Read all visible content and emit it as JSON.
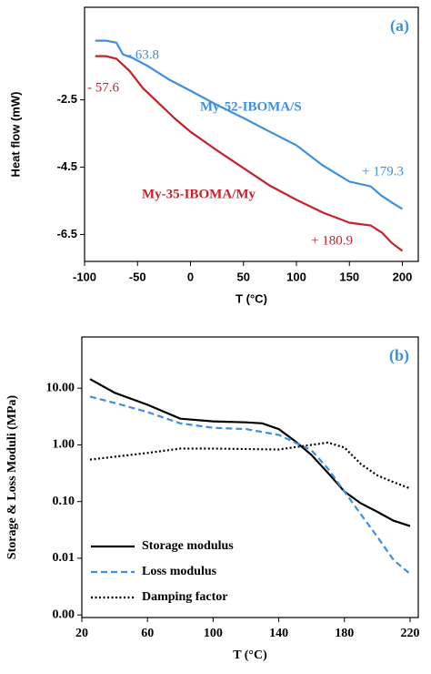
{
  "chart_data": [
    {
      "type": "line",
      "panel_label": "(a)",
      "ylabel": "Heat flow (mW)",
      "xlabel": "T (°C)",
      "xlim": [
        -100,
        215
      ],
      "xticks": [
        -100,
        -50,
        0,
        50,
        100,
        150,
        200
      ],
      "ylim": [
        -7.3,
        0.25
      ],
      "yticks": [
        -6.5,
        -4.5,
        -2.5
      ],
      "log_y": false,
      "legend": null,
      "series": [
        {
          "name": "My-52-IBOMA/S",
          "color": "#3d8fe0",
          "dash": "solid",
          "x": [
            -90,
            -80,
            -70,
            -63.8,
            -55,
            -40,
            -20,
            0,
            25,
            50,
            75,
            100,
            125,
            150,
            170,
            180,
            190,
            200
          ],
          "values": [
            -0.74,
            -0.74,
            -0.8,
            -1.15,
            -1.25,
            -1.5,
            -1.9,
            -2.23,
            -2.65,
            -3.04,
            -3.45,
            -3.85,
            -4.45,
            -4.93,
            -5.07,
            -5.34,
            -5.55,
            -5.74
          ]
        },
        {
          "name": "My-35-IBOMA/My",
          "color": "#c8202a",
          "dash": "solid",
          "x": [
            -90,
            -80,
            -70,
            -57.6,
            -45,
            -30,
            -15,
            0,
            25,
            50,
            75,
            100,
            125,
            150,
            170,
            180.9,
            190,
            200
          ],
          "values": [
            -1.2,
            -1.2,
            -1.28,
            -1.64,
            -2.15,
            -2.6,
            -3.05,
            -3.45,
            -4.0,
            -4.53,
            -5.05,
            -5.47,
            -5.85,
            -6.15,
            -6.23,
            -6.45,
            -6.75,
            -6.99
          ]
        }
      ],
      "annotations": [
        {
          "text": "- 63.8",
          "color": "#3d8fe0"
        },
        {
          "text": "My-52-IBOMA/S",
          "color": "#3d8fe0"
        },
        {
          "text": "+ 179.3",
          "color": "#3d8fe0"
        },
        {
          "text": "- 57.6",
          "color": "#c8202a"
        },
        {
          "text": "My-35-IBOMA/My",
          "color": "#c8202a"
        },
        {
          "text": "+ 180.9",
          "color": "#c8202a"
        }
      ]
    },
    {
      "type": "line",
      "panel_label": "(b)",
      "ylabel": "Storage & Loss Moduli (MPa)",
      "xlabel": "T (°C)",
      "xlim": [
        20,
        225
      ],
      "xticks": [
        20,
        60,
        100,
        140,
        180,
        220
      ],
      "ylim": [
        0.0009,
        80
      ],
      "log_y": true,
      "legend": "lower left",
      "yticks": [
        {
          "value": 0.001,
          "label": "0.00"
        },
        {
          "value": 0.01,
          "label": "0.01"
        },
        {
          "value": 0.1,
          "label": "0.10"
        },
        {
          "value": 1,
          "label": "1.00"
        },
        {
          "value": 10,
          "label": "10.00"
        }
      ],
      "series": [
        {
          "name": "Storage modulus",
          "color": "#000000",
          "dash": "solid",
          "x": [
            25,
            40,
            60,
            80,
            100,
            120,
            130,
            140,
            150,
            160,
            170,
            180,
            190,
            200,
            210,
            220
          ],
          "values": [
            14.5,
            8.3,
            5.1,
            2.9,
            2.6,
            2.5,
            2.4,
            1.9,
            1.16,
            0.66,
            0.32,
            0.15,
            0.093,
            0.066,
            0.046,
            0.037
          ]
        },
        {
          "name": "Loss modulus",
          "color": "#3d8fe0",
          "dash": "dashed",
          "x": [
            25,
            40,
            60,
            80,
            100,
            120,
            140,
            160,
            170,
            180,
            190,
            200,
            210,
            220
          ],
          "values": [
            7.1,
            5.5,
            3.8,
            2.4,
            2.0,
            1.9,
            1.5,
            0.8,
            0.38,
            0.15,
            0.06,
            0.024,
            0.0093,
            0.0053
          ]
        },
        {
          "name": "Damping factor",
          "color": "#000000",
          "dash": "dotted",
          "x": [
            25,
            60,
            80,
            100,
            140,
            160,
            170,
            180,
            190,
            200,
            210,
            220
          ],
          "values": [
            0.55,
            0.72,
            0.86,
            0.86,
            0.83,
            1.0,
            1.1,
            0.9,
            0.46,
            0.29,
            0.22,
            0.17
          ]
        }
      ],
      "annotations": []
    }
  ]
}
